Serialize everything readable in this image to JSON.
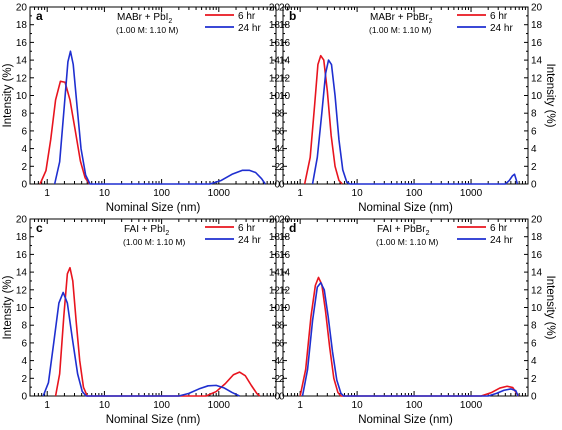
{
  "chart_data": [
    {
      "panel": "a",
      "type": "line",
      "title_main": "MABr + PbI",
      "title_sub": "2",
      "concentration": "(1.00 M: 1.10 M)",
      "xlabel": "Nominal Size (nm)",
      "ylabel": "Intensity (%)",
      "ylabel_side": "left",
      "x_scale": "log",
      "xlim": [
        0.5,
        10000
      ],
      "ylim": [
        0,
        20
      ],
      "x_ticks": [
        1,
        10,
        100,
        1000
      ],
      "y_ticks": [
        0,
        2,
        4,
        6,
        8,
        10,
        12,
        14,
        16,
        18,
        20
      ],
      "series": [
        {
          "name": "6 hr",
          "color": "#e8141e",
          "points": [
            [
              0.75,
              0
            ],
            [
              0.95,
              1.5
            ],
            [
              1.15,
              5
            ],
            [
              1.4,
              9.5
            ],
            [
              1.7,
              11.6
            ],
            [
              2.05,
              11.5
            ],
            [
              2.5,
              9.5
            ],
            [
              3.1,
              6
            ],
            [
              3.8,
              2.6
            ],
            [
              4.6,
              0.7
            ],
            [
              5.5,
              0
            ]
          ]
        },
        {
          "name": "24 hr",
          "color": "#1f2fd0",
          "points": [
            [
              1.35,
              0
            ],
            [
              1.65,
              2.5
            ],
            [
              2.0,
              9
            ],
            [
              2.3,
              13.8
            ],
            [
              2.55,
              15
            ],
            [
              2.85,
              13.5
            ],
            [
              3.3,
              9
            ],
            [
              3.9,
              4
            ],
            [
              4.7,
              1
            ],
            [
              5.6,
              0
            ],
            [
              700,
              0
            ],
            [
              1100,
              0.4
            ],
            [
              1700,
              1.1
            ],
            [
              2600,
              1.55
            ],
            [
              3400,
              1.55
            ],
            [
              4400,
              1.3
            ],
            [
              5600,
              0.6
            ],
            [
              6500,
              0
            ]
          ]
        }
      ]
    },
    {
      "panel": "b",
      "type": "line",
      "title_main": "MABr + PbBr",
      "title_sub": "2",
      "concentration": "(1.00 M: 1.10 M)",
      "xlabel": "Nominal Size (nm)",
      "ylabel": "Intensity (%)",
      "ylabel_side": "right",
      "x_scale": "log",
      "xlim": [
        0.5,
        10000
      ],
      "ylim": [
        0,
        20
      ],
      "x_ticks": [
        1,
        10,
        100,
        1000
      ],
      "y_ticks": [
        0,
        2,
        4,
        6,
        8,
        10,
        12,
        14,
        16,
        18,
        20
      ],
      "series": [
        {
          "name": "6 hr",
          "color": "#e8141e",
          "points": [
            [
              1.2,
              0
            ],
            [
              1.5,
              3
            ],
            [
              1.8,
              9
            ],
            [
              2.05,
              13.5
            ],
            [
              2.3,
              14.5
            ],
            [
              2.6,
              14
            ],
            [
              3.0,
              10.5
            ],
            [
              3.5,
              5.5
            ],
            [
              4.1,
              2
            ],
            [
              4.8,
              0.4
            ],
            [
              5.5,
              0
            ]
          ]
        },
        {
          "name": "24 hr",
          "color": "#1f2fd0",
          "points": [
            [
              1.65,
              0
            ],
            [
              2.0,
              3
            ],
            [
              2.4,
              8
            ],
            [
              2.8,
              12.5
            ],
            [
              3.15,
              14
            ],
            [
              3.55,
              13.5
            ],
            [
              4.1,
              10
            ],
            [
              4.8,
              5
            ],
            [
              5.6,
              1.6
            ],
            [
              6.6,
              0.2
            ],
            [
              7.5,
              0
            ],
            [
              4000,
              0
            ],
            [
              4700,
              0.4
            ],
            [
              5300,
              0.9
            ],
            [
              5800,
              1.1
            ],
            [
              6200,
              0.5
            ],
            [
              6500,
              0
            ]
          ]
        }
      ]
    },
    {
      "panel": "c",
      "type": "line",
      "title_main": "FAI + PbI",
      "title_sub": "2",
      "concentration": "(1.00 M: 1.10 M)",
      "xlabel": "Nominal Size (nm)",
      "ylabel": "Intensity (%)",
      "ylabel_side": "left",
      "x_scale": "log",
      "xlim": [
        0.5,
        10000
      ],
      "ylim": [
        0,
        20
      ],
      "x_ticks": [
        1,
        10,
        100,
        1000
      ],
      "y_ticks": [
        0,
        2,
        4,
        6,
        8,
        10,
        12,
        14,
        16,
        18,
        20
      ],
      "series": [
        {
          "name": "6 hr",
          "color": "#e8141e",
          "points": [
            [
              1.4,
              0
            ],
            [
              1.65,
              2.5
            ],
            [
              1.95,
              9
            ],
            [
              2.25,
              13.8
            ],
            [
              2.5,
              14.5
            ],
            [
              2.8,
              13
            ],
            [
              3.2,
              8.5
            ],
            [
              3.7,
              4
            ],
            [
              4.3,
              1
            ],
            [
              5.0,
              0
            ],
            [
              600,
              0
            ],
            [
              900,
              0.5
            ],
            [
              1300,
              1.4
            ],
            [
              1800,
              2.4
            ],
            [
              2300,
              2.7
            ],
            [
              2900,
              2.3
            ],
            [
              3700,
              1.2
            ],
            [
              4600,
              0.3
            ],
            [
              5200,
              0
            ]
          ]
        },
        {
          "name": "24 hr",
          "color": "#1f2fd0",
          "points": [
            [
              0.85,
              0
            ],
            [
              1.05,
              1.5
            ],
            [
              1.3,
              6
            ],
            [
              1.6,
              10.5
            ],
            [
              1.9,
              11.7
            ],
            [
              2.25,
              10.5
            ],
            [
              2.75,
              6.5
            ],
            [
              3.4,
              2.5
            ],
            [
              4.1,
              0.5
            ],
            [
              4.8,
              0
            ],
            [
              200,
              0
            ],
            [
              300,
              0.3
            ],
            [
              450,
              0.8
            ],
            [
              650,
              1.15
            ],
            [
              900,
              1.2
            ],
            [
              1250,
              0.9
            ],
            [
              1700,
              0.4
            ],
            [
              2300,
              0
            ]
          ]
        }
      ]
    },
    {
      "panel": "d",
      "type": "line",
      "title_main": "FAI + PbBr",
      "title_sub": "2",
      "concentration": "(1.00 M: 1.10 M)",
      "xlabel": "Nominal Size (nm)",
      "ylabel": "Intensity (%)",
      "ylabel_side": "right",
      "x_scale": "log",
      "xlim": [
        0.5,
        10000
      ],
      "ylim": [
        0,
        20
      ],
      "x_ticks": [
        1,
        10,
        100,
        1000
      ],
      "y_ticks": [
        0,
        2,
        4,
        6,
        8,
        10,
        12,
        14,
        16,
        18,
        20
      ],
      "series": [
        {
          "name": "6 hr",
          "color": "#e8141e",
          "points": [
            [
              1.0,
              0
            ],
            [
              1.25,
              3
            ],
            [
              1.55,
              9
            ],
            [
              1.85,
              12.5
            ],
            [
              2.1,
              13.4
            ],
            [
              2.4,
              12.6
            ],
            [
              2.8,
              9.5
            ],
            [
              3.3,
              5.5
            ],
            [
              3.9,
              2
            ],
            [
              4.6,
              0.4
            ],
            [
              5.2,
              0
            ],
            [
              1500,
              0
            ],
            [
              2300,
              0.4
            ],
            [
              3200,
              0.9
            ],
            [
              4300,
              1.1
            ],
            [
              5400,
              0.95
            ],
            [
              6300,
              0.3
            ],
            [
              6800,
              0
            ]
          ]
        },
        {
          "name": "24 hr",
          "color": "#1f2fd0",
          "points": [
            [
              1.1,
              0
            ],
            [
              1.35,
              3
            ],
            [
              1.65,
              8.5
            ],
            [
              2.0,
              12.3
            ],
            [
              2.3,
              12.8
            ],
            [
              2.65,
              12
            ],
            [
              3.1,
              9
            ],
            [
              3.7,
              5
            ],
            [
              4.4,
              1.8
            ],
            [
              5.2,
              0.3
            ],
            [
              5.8,
              0
            ],
            [
              2000,
              0
            ],
            [
              2800,
              0.3
            ],
            [
              3800,
              0.65
            ],
            [
              5000,
              0.8
            ],
            [
              6100,
              0.6
            ],
            [
              6700,
              0
            ]
          ]
        }
      ]
    }
  ]
}
